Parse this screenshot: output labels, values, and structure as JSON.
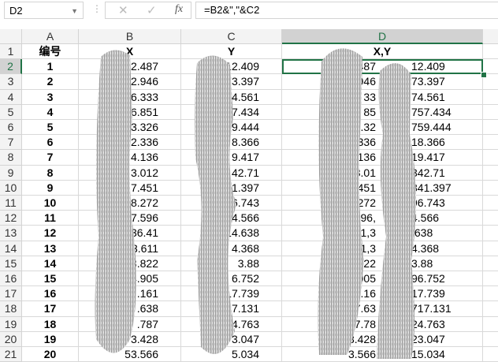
{
  "formula_bar": {
    "name_box": "D2",
    "cancel_icon": "✕",
    "enter_icon": "✓",
    "fx_label": "fx",
    "formula": "=B2&\",\"&C2"
  },
  "columns": [
    "A",
    "B",
    "C",
    "D"
  ],
  "selected_cell": "D2",
  "header_row": {
    "row": "1",
    "A": "编号",
    "B": "X",
    "C": "Y",
    "D": "X,Y"
  },
  "rows": [
    {
      "row": "2",
      "A": "1",
      "B": "2.487",
      "C": "12.409",
      "D_left": "487",
      "D_right": "12.409"
    },
    {
      "row": "3",
      "A": "2",
      "B": "2.946",
      "C": "73.397",
      "D_left": "946",
      "D_right": "73.397"
    },
    {
      "row": "4",
      "A": "3",
      "B": "6.333",
      "C": "74.561",
      "D_left": "33",
      "D_right": "74.561"
    },
    {
      "row": "5",
      "A": "4",
      "B": "6.851",
      "C": "57.434",
      "D_left": "85",
      "D_right": "757.434"
    },
    {
      "row": "6",
      "A": "5",
      "B": "3.326",
      "C": "59.444",
      "D_left": "3.32",
      "D_right": "759.444"
    },
    {
      "row": "7",
      "A": "6",
      "B": "2.336",
      "C": "8.366",
      "D_left": "2.336",
      "D_right": "18.366"
    },
    {
      "row": "8",
      "A": "7",
      "B": "4.136",
      "C": "9.417",
      "D_left": "4.136",
      "D_right": "19.417"
    },
    {
      "row": "9",
      "A": "8",
      "B": "3.012",
      "C": "42.71",
      "D_left": "3.01",
      "D_right": "342.71"
    },
    {
      "row": "10",
      "A": "9",
      "B": "7.451",
      "C": "41.397",
      "D_left": "7.451",
      "D_right": "341.397"
    },
    {
      "row": "11",
      "A": "10",
      "B": "8.272",
      "C": "96.743",
      "D_left": "3.272",
      "D_right": "96.743"
    },
    {
      "row": "12",
      "A": "11",
      "B": "87.596",
      "C": "94.566",
      "D_left": "7.596,",
      "D_right": "4.566"
    },
    {
      "row": "13",
      "A": "12",
      "B": "36.41",
      "C": "14.638",
      "D_left": "6.41,3",
      "D_right": ".638"
    },
    {
      "row": "14",
      "A": "13",
      "B": "23.611",
      "C": "4.368",
      "D_left": "3.611,3",
      "D_right": "4.368"
    },
    {
      "row": "15",
      "A": "14",
      "B": "23.822",
      "C": "3.88",
      "D_left": "3.822",
      "D_right": "3.88"
    },
    {
      "row": "16",
      "A": "15",
      "B": "4.905",
      "C": "6.752",
      "D_left": "4.905",
      "D_right": "96.752"
    },
    {
      "row": "17",
      "A": "16",
      "B": ".161",
      "C": "17.739",
      "D_left": "4.16",
      "D_right": "17.739"
    },
    {
      "row": "18",
      "A": "17",
      "B": ".638",
      "C": "17.131",
      "D_left": "7.63",
      "D_right": "717.131"
    },
    {
      "row": "19",
      "A": "18",
      "B": ".787",
      "C": "4.763",
      "D_left": "7.78",
      "D_right": "24.763"
    },
    {
      "row": "20",
      "A": "19",
      "B": "3.428",
      "C": "3.047",
      "D_left": "3.428",
      "D_right": "23.047"
    },
    {
      "row": "21",
      "A": "20",
      "B": "53.566",
      "C": "5.034",
      "D_left": "3.566",
      "D_right": "15.034"
    }
  ],
  "colors": {
    "accent": "#217346",
    "header_bg": "#f3f3f3",
    "selected_header_bg": "#d2d2d2",
    "gridline": "#d9d9d9"
  }
}
